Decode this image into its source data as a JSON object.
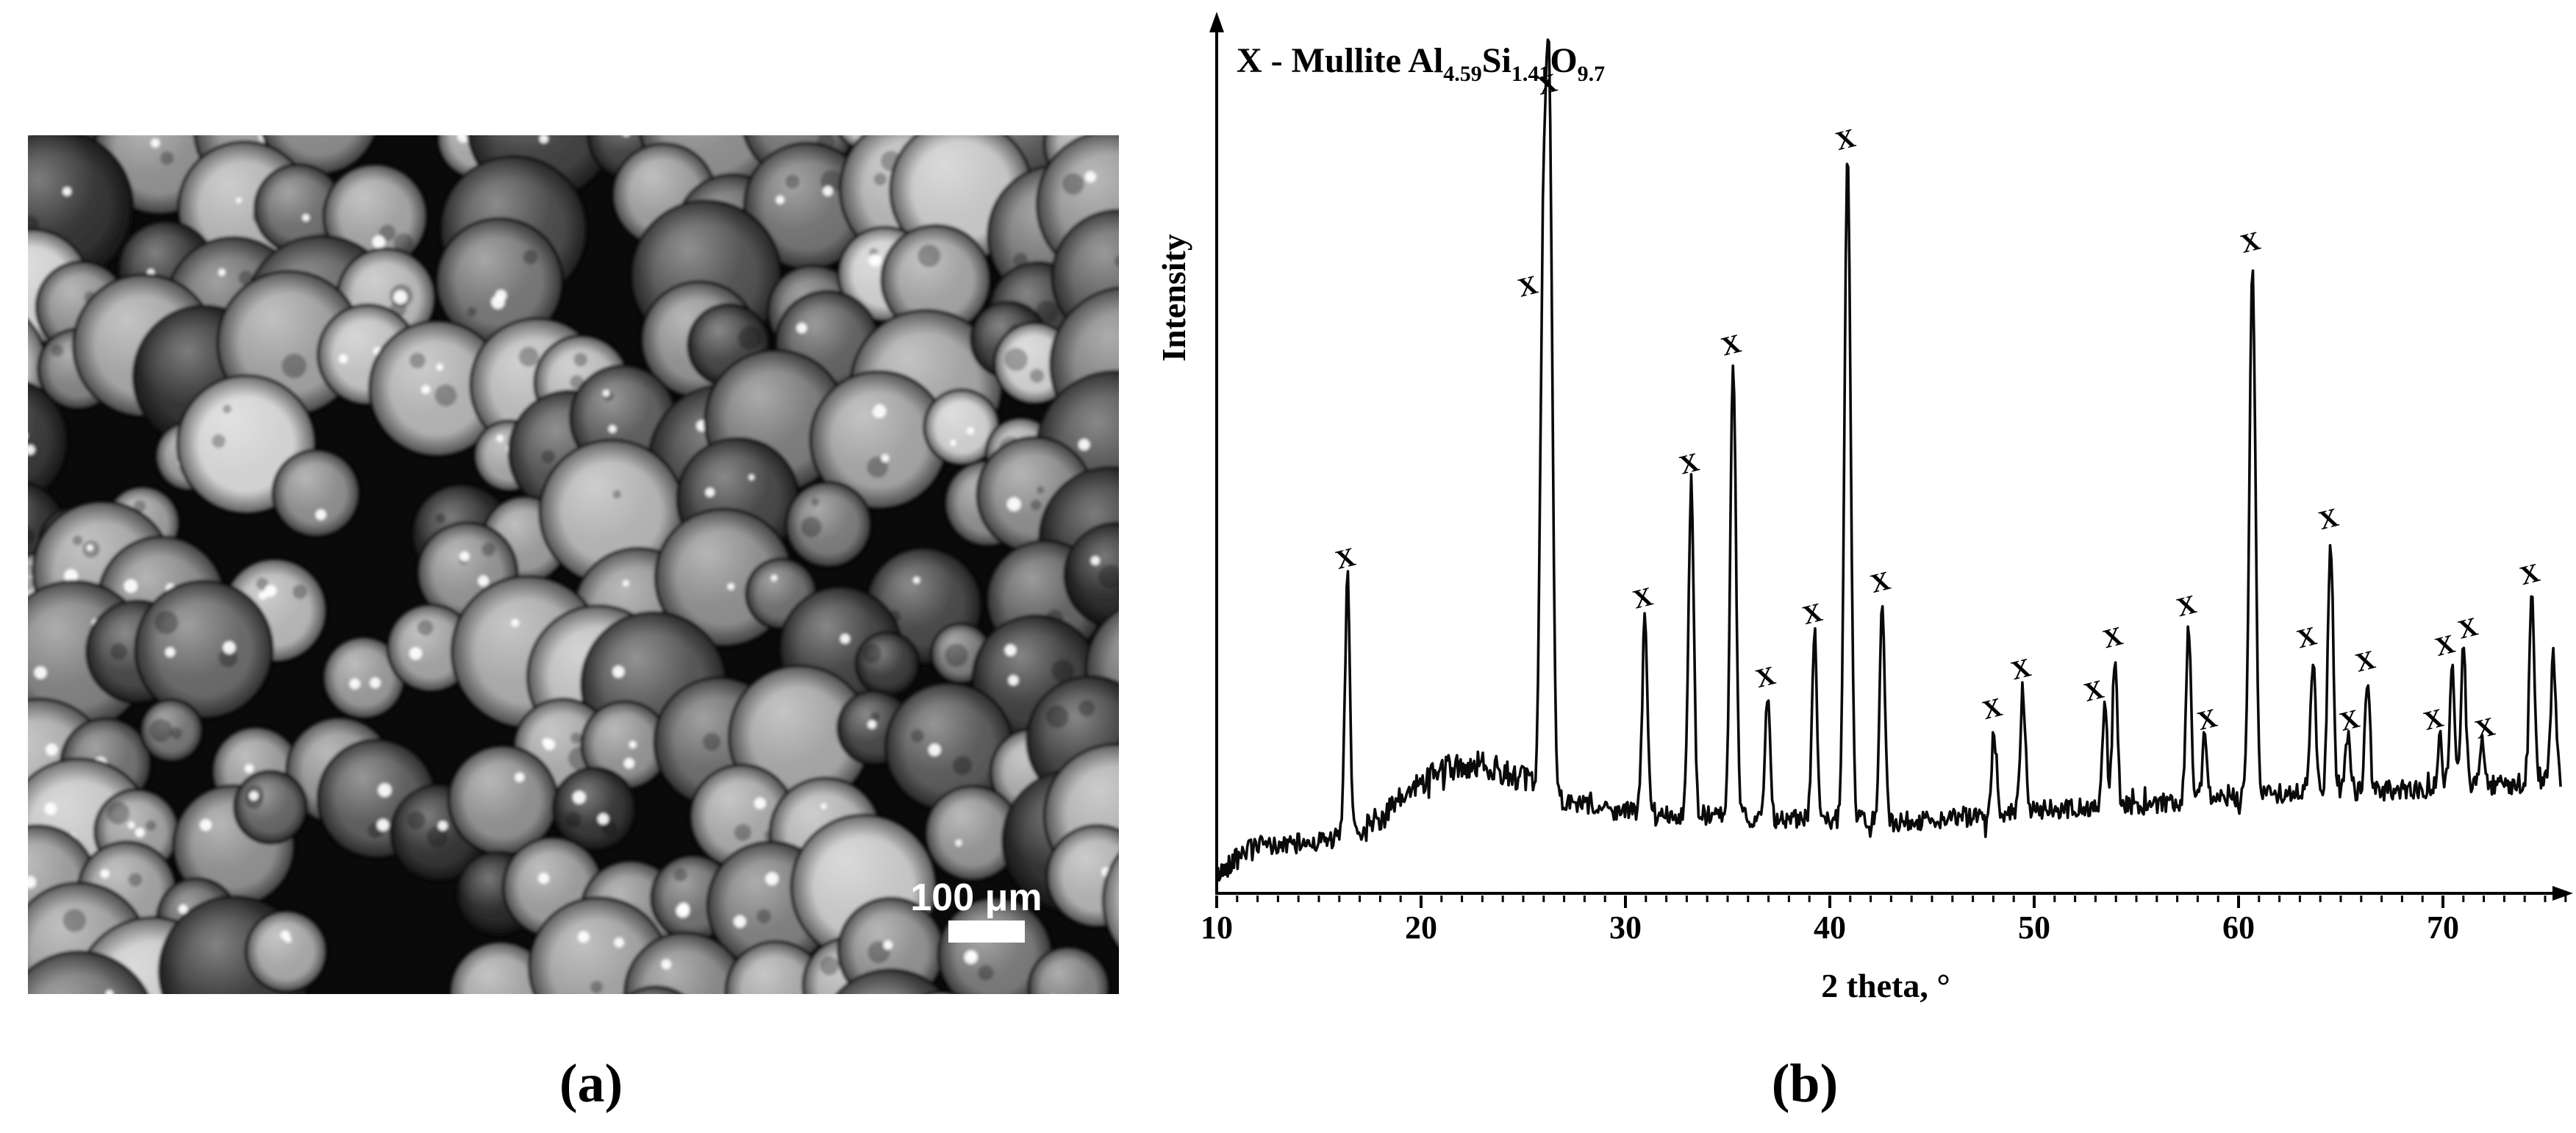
{
  "figure": {
    "background_color": "#ffffff",
    "panel_a": {
      "caption": "(a)",
      "content": "micrograph of packed ceramic microspheres",
      "scale_bar": {
        "label": "100 μm",
        "color": "#ffffff"
      },
      "texture_seed": 12,
      "background_color": "#0a0a0a",
      "sphere_palette_range": [
        "#2e2e2e",
        "#d6d6d6"
      ]
    },
    "panel_b": {
      "caption": "(b)"
    }
  },
  "chart_data": {
    "type": "line",
    "title": "",
    "legend": {
      "marker": "X",
      "text_main": "X - Mullite Al",
      "formula_parts": [
        {
          "t": "X - Mullite Al"
        },
        {
          "sub": "4.59"
        },
        {
          "t": "Si"
        },
        {
          "sub": "1.41"
        },
        {
          "t": "O"
        },
        {
          "sub": "9.7"
        }
      ],
      "display": "X - Mullite Al4.59Si1.41O9.7"
    },
    "xlabel": "2 theta, °",
    "ylabel": "Intensity",
    "xlim": [
      10,
      76.3
    ],
    "ylim": [
      0,
      105
    ],
    "x_ticks": [
      10,
      20,
      30,
      40,
      50,
      60,
      70
    ],
    "minor_tick_step": 1,
    "grid": false,
    "line_color": "#0a0a0a",
    "peak_label": "X",
    "noise_seed": 42,
    "noise_amplitude": 1.25,
    "hump_noise_amplitude": 1.7,
    "background_profile": [
      [
        10,
        2.2
      ],
      [
        10.6,
        3.5
      ],
      [
        11,
        5
      ],
      [
        12,
        6
      ],
      [
        13,
        6
      ],
      [
        14,
        6.3
      ],
      [
        15,
        6.6
      ],
      [
        16,
        7
      ],
      [
        16.8,
        7.6
      ],
      [
        17.5,
        8.6
      ],
      [
        18.5,
        10.5
      ],
      [
        19.5,
        13
      ],
      [
        20.5,
        15
      ],
      [
        21.5,
        15.8
      ],
      [
        22.5,
        16.3
      ],
      [
        23.5,
        16
      ],
      [
        24.5,
        15
      ],
      [
        25.3,
        14
      ],
      [
        26,
        13
      ],
      [
        26.8,
        12
      ],
      [
        27.5,
        11.3
      ],
      [
        29,
        10.6
      ],
      [
        31,
        10.2
      ],
      [
        33,
        10
      ],
      [
        35,
        9.7
      ],
      [
        38,
        9.4
      ],
      [
        41,
        9.2
      ],
      [
        43,
        9
      ],
      [
        45,
        9.3
      ],
      [
        47,
        9.8
      ],
      [
        49,
        10.2
      ],
      [
        51,
        10.6
      ],
      [
        53,
        10.9
      ],
      [
        55,
        11.1
      ],
      [
        57,
        11.5
      ],
      [
        59,
        12
      ],
      [
        61,
        12.4
      ],
      [
        63,
        12.8
      ],
      [
        65,
        13
      ],
      [
        67,
        13
      ],
      [
        69,
        13.2
      ],
      [
        71,
        13.4
      ],
      [
        73,
        13.7
      ],
      [
        75,
        14.2
      ],
      [
        76.3,
        14.8
      ]
    ],
    "peaks": [
      {
        "two_theta": 16.4,
        "intensity": 40,
        "labeled": true
      },
      {
        "two_theta": 25.97,
        "intensity": 75,
        "labeled": true,
        "label_dx": -18,
        "label_dy": 6
      },
      {
        "two_theta": 26.27,
        "intensity": 100,
        "labeled": true
      },
      {
        "two_theta": 30.95,
        "intensity": 35,
        "labeled": true
      },
      {
        "two_theta": 33.22,
        "intensity": 52,
        "labeled": true
      },
      {
        "two_theta": 35.27,
        "intensity": 67,
        "labeled": true
      },
      {
        "two_theta": 36.95,
        "intensity": 25,
        "labeled": true
      },
      {
        "two_theta": 39.25,
        "intensity": 33,
        "labeled": true
      },
      {
        "two_theta": 40.87,
        "intensity": 93,
        "labeled": true
      },
      {
        "two_theta": 42.57,
        "intensity": 37,
        "labeled": true
      },
      {
        "two_theta": 48.05,
        "intensity": 21,
        "labeled": true
      },
      {
        "two_theta": 49.45,
        "intensity": 26,
        "labeled": true
      },
      {
        "two_theta": 53.45,
        "intensity": 24,
        "labeled": true,
        "label_dx": -12,
        "label_dy": 8
      },
      {
        "two_theta": 53.95,
        "intensity": 30,
        "labeled": true
      },
      {
        "two_theta": 57.55,
        "intensity": 34,
        "labeled": true
      },
      {
        "two_theta": 58.35,
        "intensity": 20,
        "labeled": true,
        "label_dx": 6,
        "label_dy": 4
      },
      {
        "two_theta": 60.68,
        "intensity": 80,
        "labeled": true
      },
      {
        "two_theta": 63.65,
        "intensity": 30,
        "labeled": true,
        "label_dx": -6
      },
      {
        "two_theta": 64.5,
        "intensity": 45,
        "labeled": true
      },
      {
        "two_theta": 65.35,
        "intensity": 20,
        "labeled": true,
        "label_dx": 5,
        "label_dy": 5
      },
      {
        "two_theta": 66.3,
        "intensity": 27,
        "labeled": true
      },
      {
        "two_theta": 69.85,
        "intensity": 20,
        "labeled": true,
        "label_dx": -6,
        "label_dy": 4
      },
      {
        "two_theta": 70.45,
        "intensity": 29,
        "labeled": true,
        "label_dx": -7
      },
      {
        "two_theta": 71.0,
        "intensity": 31,
        "labeled": true,
        "label_dx": 9,
        "label_dy": -2
      },
      {
        "two_theta": 71.9,
        "intensity": 19,
        "labeled": true,
        "label_dx": 7,
        "label_dy": 5
      },
      {
        "two_theta": 74.35,
        "intensity": 38,
        "labeled": true
      },
      {
        "two_theta": 75.4,
        "intensity": 30,
        "labeled": false
      }
    ]
  }
}
